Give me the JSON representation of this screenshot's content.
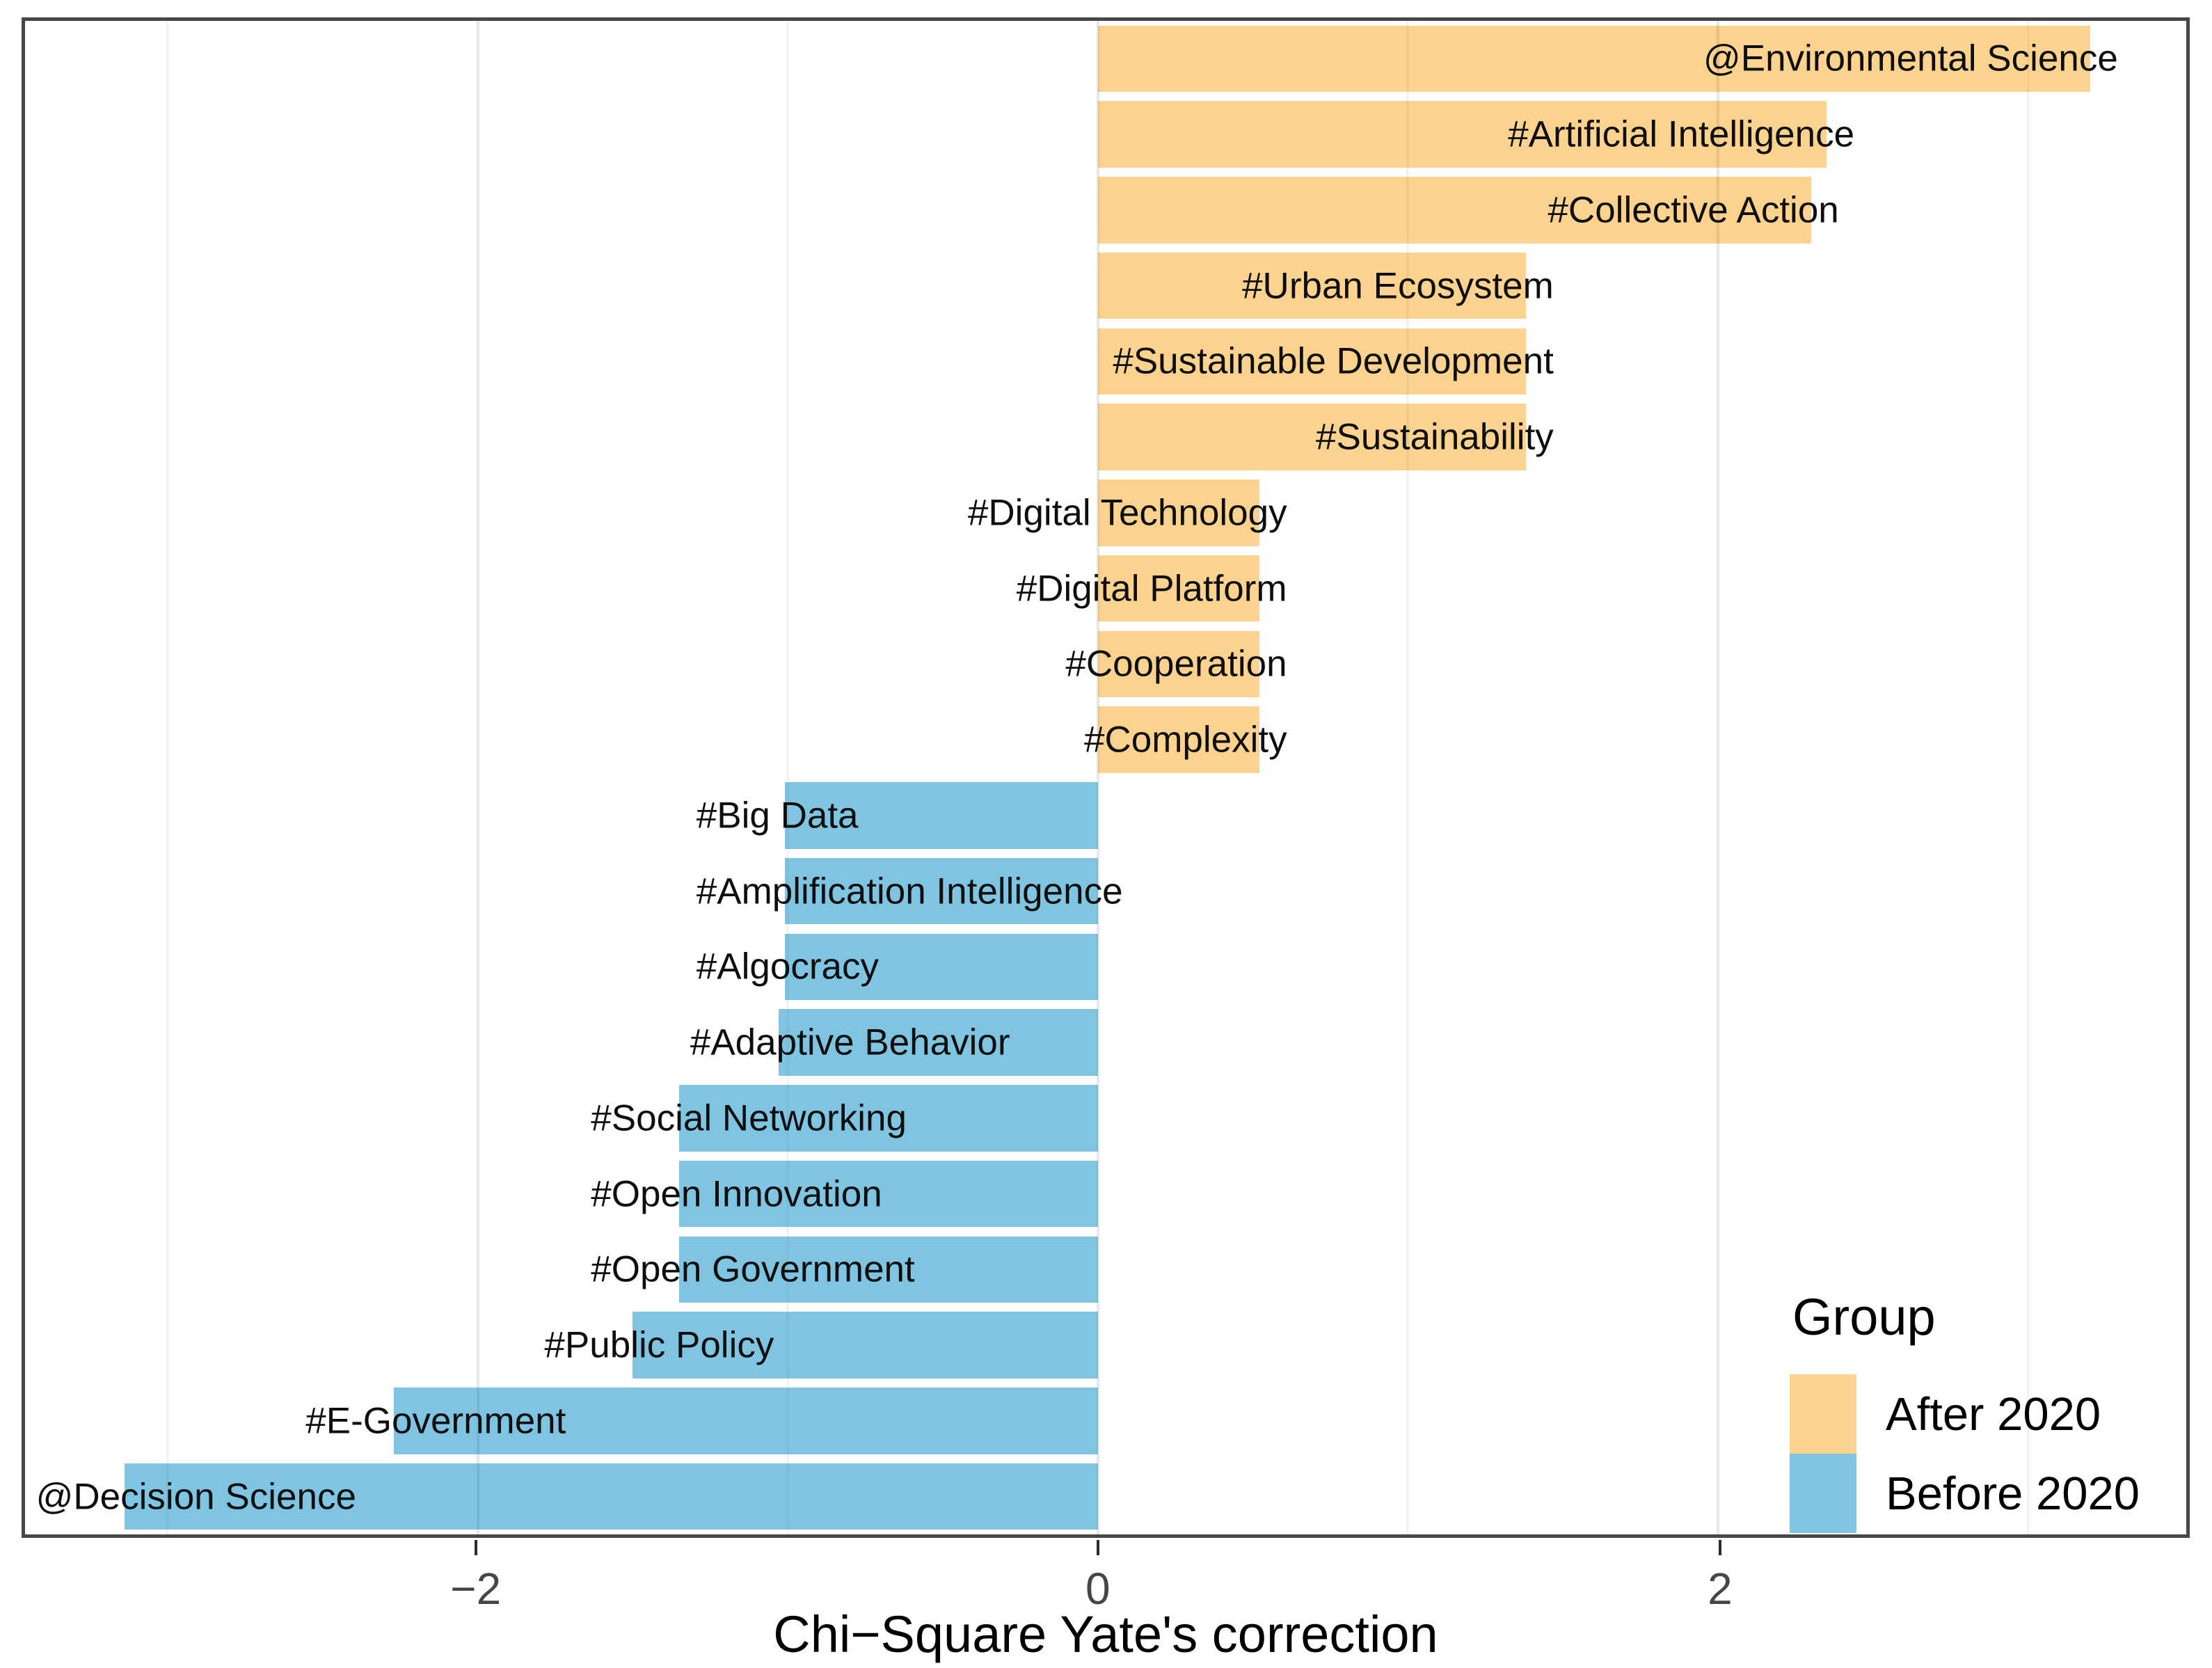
{
  "chart_data": {
    "type": "bar",
    "orientation": "horizontal",
    "title": "",
    "xlabel": "Chi−Square Yate's correction",
    "ylabel": "",
    "xlim": [
      -3.46,
      3.51
    ],
    "x_ticks": [
      {
        "value": -2,
        "label": "−2"
      },
      {
        "value": 0,
        "label": "0"
      },
      {
        "value": 2,
        "label": "2"
      }
    ],
    "x_minor_gridlines": [
      -3,
      -1,
      1,
      3
    ],
    "grid": "on",
    "legend": {
      "title": "Group",
      "position": "inside-bottom-right",
      "items": [
        {
          "label": "After 2020",
          "color": "#FBD38E"
        },
        {
          "label": "Before 2020",
          "color": "#7FC5E2"
        }
      ]
    },
    "colors": {
      "After 2020": "#FBD38E",
      "Before 2020": "#7FC5E2"
    },
    "bars": [
      {
        "label": "@Environmental Science",
        "group": "After 2020",
        "value": 3.2
      },
      {
        "label": "#Artificial Intelligence",
        "group": "After 2020",
        "value": 2.35
      },
      {
        "label": "#Collective Action",
        "group": "After 2020",
        "value": 2.3
      },
      {
        "label": "#Urban Ecosystem",
        "group": "After 2020",
        "value": 1.38
      },
      {
        "label": "#Sustainable Development",
        "group": "After 2020",
        "value": 1.38
      },
      {
        "label": "#Sustainability",
        "group": "After 2020",
        "value": 1.38
      },
      {
        "label": "#Digital Technology",
        "group": "After 2020",
        "value": 0.52
      },
      {
        "label": "#Digital Platform",
        "group": "After 2020",
        "value": 0.52
      },
      {
        "label": "#Cooperation",
        "group": "After 2020",
        "value": 0.52
      },
      {
        "label": "#Complexity",
        "group": "After 2020",
        "value": 0.52
      },
      {
        "label": "#Big Data",
        "group": "Before 2020",
        "value": -1.01
      },
      {
        "label": "#Amplification Intelligence",
        "group": "Before 2020",
        "value": -1.01
      },
      {
        "label": "#Algocracy",
        "group": "Before 2020",
        "value": -1.01
      },
      {
        "label": "#Adaptive Behavior",
        "group": "Before 2020",
        "value": -1.03
      },
      {
        "label": "#Social Networking",
        "group": "Before 2020",
        "value": -1.35
      },
      {
        "label": "#Open Innovation",
        "group": "Before 2020",
        "value": -1.35
      },
      {
        "label": "#Open Government",
        "group": "Before 2020",
        "value": -1.35
      },
      {
        "label": "#Public Policy",
        "group": "Before 2020",
        "value": -1.5
      },
      {
        "label": "#E-Government",
        "group": "Before 2020",
        "value": -2.27
      },
      {
        "label": "@Decision Science",
        "group": "Before 2020",
        "value": -3.14
      }
    ]
  },
  "panel": {
    "background": "#FFFFFF",
    "border_color": "#474747"
  }
}
